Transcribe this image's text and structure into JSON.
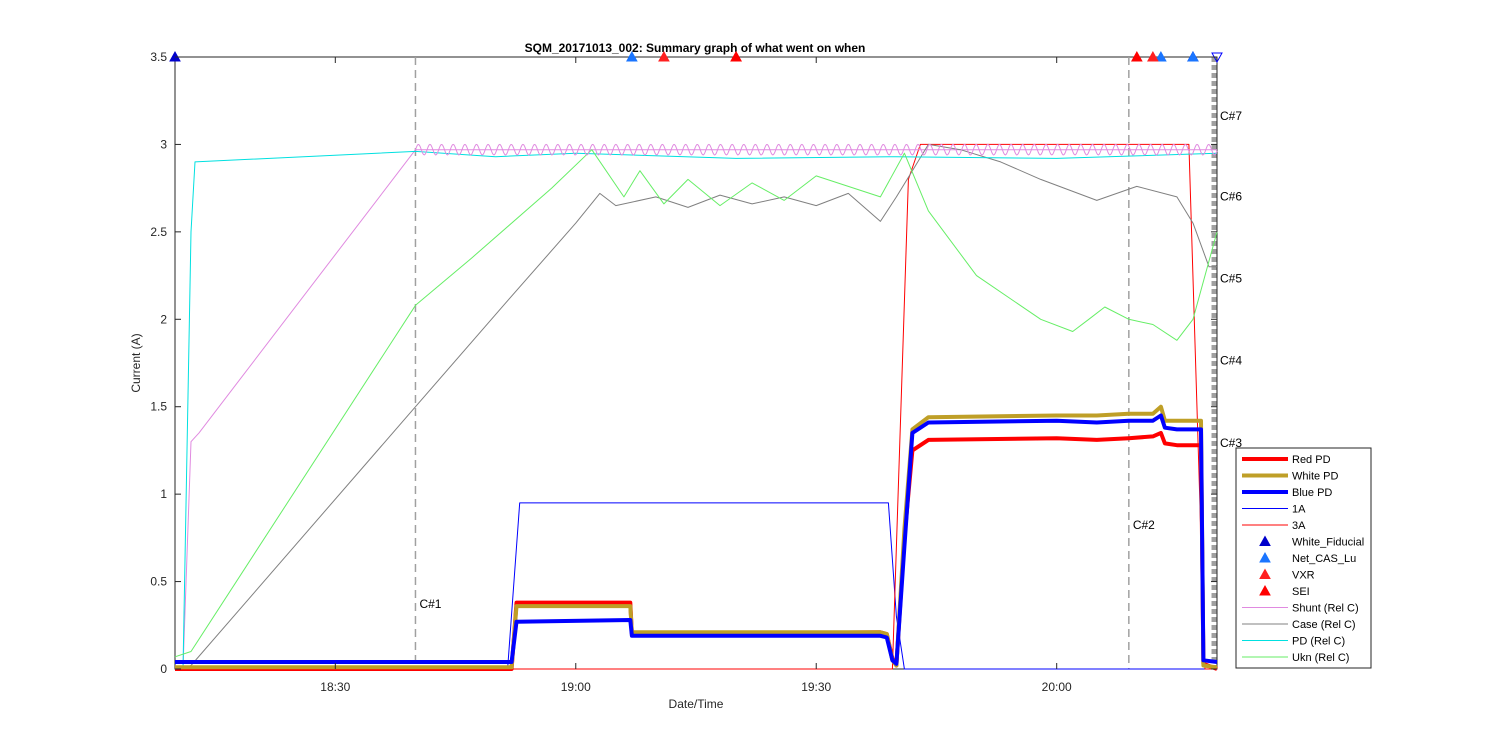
{
  "chart_data": {
    "type": "line",
    "title": "SQM_20171013_002: Summary graph of what went on when",
    "xlabel": "Date/Time",
    "ylabel": "Current (A)",
    "xlim": [
      "18:10",
      "20:20"
    ],
    "ylim": [
      0,
      3.5
    ],
    "xticks": [
      "18:30",
      "19:00",
      "19:30",
      "20:00"
    ],
    "yticks": [
      "0",
      "0.5",
      "1",
      "1.5",
      "2",
      "2.5",
      "3",
      "3.5"
    ],
    "grid": false,
    "legend_position": "right-bottom",
    "series": [
      {
        "name": "Red PD",
        "color": "#ff0000",
        "style": "thick",
        "x": [
          "18:10",
          "18:52",
          "18:52.6",
          "19:06.8",
          "19:07",
          "19:38",
          "19:38.8",
          "19:39.5",
          "19:40",
          "19:41",
          "19:42",
          "19:44",
          "20:00",
          "20:05",
          "20:09",
          "20:12",
          "20:13",
          "20:13.5",
          "20:15",
          "20:18",
          "20:18.3",
          "20:20"
        ],
        "y": [
          0,
          0,
          0.38,
          0.38,
          0.2,
          0.21,
          0.2,
          0.06,
          0.02,
          0.75,
          1.25,
          1.31,
          1.32,
          1.31,
          1.32,
          1.33,
          1.35,
          1.29,
          1.28,
          1.28,
          0.03,
          0
        ]
      },
      {
        "name": "White PD",
        "color": "#bf9f27",
        "style": "thick",
        "x": [
          "18:10",
          "18:52",
          "18:52.6",
          "19:06.8",
          "19:07",
          "19:38",
          "19:38.8",
          "19:39.5",
          "19:40",
          "19:41",
          "19:42",
          "19:44",
          "20:00",
          "20:05",
          "20:09",
          "20:12",
          "20:13",
          "20:13.5",
          "20:15",
          "20:18",
          "20:18.3",
          "20:20"
        ],
        "y": [
          0.01,
          0.01,
          0.36,
          0.36,
          0.21,
          0.21,
          0.2,
          0.05,
          0.02,
          0.8,
          1.37,
          1.44,
          1.45,
          1.45,
          1.46,
          1.46,
          1.5,
          1.42,
          1.42,
          1.42,
          0.02,
          0.01
        ]
      },
      {
        "name": "Blue PD",
        "color": "#0000ff",
        "style": "thick",
        "x": [
          "18:10",
          "18:52",
          "18:52.6",
          "19:06.8",
          "19:07",
          "19:38",
          "19:38.8",
          "19:39.5",
          "19:40",
          "19:41",
          "19:42",
          "19:44",
          "20:00",
          "20:05",
          "20:09",
          "20:12",
          "20:13",
          "20:13.5",
          "20:15",
          "20:18",
          "20:18.3",
          "20:20"
        ],
        "y": [
          0.04,
          0.04,
          0.27,
          0.28,
          0.19,
          0.19,
          0.18,
          0.05,
          0.03,
          0.7,
          1.35,
          1.41,
          1.42,
          1.41,
          1.42,
          1.42,
          1.45,
          1.38,
          1.37,
          1.37,
          0.05,
          0.04
        ]
      },
      {
        "name": "1A",
        "color": "#0000ff",
        "style": "thin",
        "x": [
          "18:10",
          "18:51.5",
          "18:53",
          "19:39",
          "19:40",
          "19:41",
          "20:20"
        ],
        "y": [
          0,
          0,
          0.95,
          0.95,
          0.3,
          0,
          0
        ]
      },
      {
        "name": "3A",
        "color": "#ff0000",
        "style": "thin",
        "x": [
          "18:10",
          "19:39.5",
          "19:41.5",
          "19:43",
          "20:16.5",
          "20:18.5",
          "20:20"
        ],
        "y": [
          0,
          0,
          2.8,
          3,
          3,
          0,
          0
        ]
      },
      {
        "name": "Shunt (Rel C)",
        "color": "#e08ae0",
        "style": "thin",
        "x": [
          "18:11",
          "18:12",
          "18:13",
          "18:40",
          "20:20"
        ],
        "y": [
          0,
          1.3,
          1.35,
          2.97,
          2.97
        ]
      },
      {
        "name": "Case (Rel C)",
        "color": "#808080",
        "style": "thin",
        "x": [
          "18:11",
          "18:12",
          "18:40",
          "18:51",
          "19:00",
          "19:03",
          "19:05",
          "19:10",
          "19:14",
          "19:18",
          "19:22",
          "19:26",
          "19:30",
          "19:34",
          "19:38",
          "19:40",
          "19:42",
          "19:44",
          "19:48",
          "19:53",
          "19:58",
          "20:05",
          "20:10",
          "20:15",
          "20:17",
          "20:19",
          "20:20"
        ],
        "y": [
          0,
          0.02,
          1.5,
          2.08,
          2.55,
          2.72,
          2.65,
          2.7,
          2.64,
          2.71,
          2.66,
          2.7,
          2.65,
          2.72,
          2.56,
          2.7,
          2.85,
          3.0,
          2.97,
          2.9,
          2.8,
          2.68,
          2.76,
          2.7,
          2.55,
          2.3,
          2.3
        ]
      },
      {
        "name": "PD (Rel C)",
        "color": "#00e0e0",
        "style": "thin",
        "x": [
          "18:11",
          "18:12",
          "18:12.5",
          "18:40",
          "18:50",
          "19:00",
          "19:20",
          "19:40",
          "20:00",
          "20:20"
        ],
        "y": [
          0,
          2.5,
          2.9,
          2.96,
          2.93,
          2.95,
          2.92,
          2.93,
          2.92,
          2.95
        ]
      },
      {
        "name": "Ukn (Rel C)",
        "color": "#66ee66",
        "style": "thin",
        "x": [
          "18:10",
          "18:12",
          "18:40",
          "18:47",
          "18:57",
          "19:02",
          "19:06",
          "19:08",
          "19:11",
          "19:14",
          "19:18",
          "19:22",
          "19:26",
          "19:30",
          "19:34",
          "19:38",
          "19:41",
          "19:44",
          "19:50",
          "19:58",
          "20:02",
          "20:04",
          "20:06",
          "20:09",
          "20:12",
          "20:15",
          "20:17",
          "20:20"
        ],
        "y": [
          0.07,
          0.1,
          2.08,
          2.35,
          2.75,
          2.97,
          2.7,
          2.85,
          2.66,
          2.8,
          2.65,
          2.78,
          2.68,
          2.82,
          2.76,
          2.7,
          2.95,
          2.62,
          2.25,
          2.0,
          1.93,
          2.0,
          2.07,
          2.0,
          1.97,
          1.88,
          2.0,
          2.5
        ]
      }
    ],
    "markers": [
      {
        "name": "White_Fiducial",
        "color": "#0000cc",
        "shape": "triangle-up",
        "x": [
          "18:10",
          "20:17"
        ],
        "y": [
          3.5,
          3.5
        ]
      },
      {
        "name": "Net_CAS_Lu",
        "color": "#1a75ff",
        "shape": "triangle-up",
        "x": [
          "19:07",
          "20:13",
          "20:17"
        ],
        "y": [
          3.5,
          3.5,
          3.5
        ]
      },
      {
        "name": "VXR",
        "color": "#ff2020",
        "shape": "triangle-up",
        "x": [
          "19:11",
          "19:20",
          "20:12"
        ],
        "y": [
          3.5,
          3.5,
          3.5
        ]
      },
      {
        "name": "SEI",
        "color": "#ff0000",
        "shape": "triangle-up",
        "x": [
          "19:20",
          "20:10"
        ],
        "y": [
          3.5,
          3.5
        ]
      },
      {
        "name": "",
        "color": "#0000ff",
        "shape": "triangle-down",
        "x": [
          "20:20"
        ],
        "y": [
          3.5
        ]
      }
    ],
    "vlines": [
      {
        "x": "18:40",
        "label": "C#1",
        "label_y": 0.35
      },
      {
        "x": "20:09",
        "label": "C#2",
        "label_y": 0.8
      }
    ],
    "right_labels": [
      {
        "label": "C#3",
        "y": 1.27
      },
      {
        "label": "C#4",
        "y": 1.74
      },
      {
        "label": "C#5",
        "y": 2.21
      },
      {
        "label": "C#6",
        "y": 2.68
      },
      {
        "label": "C#7",
        "y": 3.14
      }
    ]
  }
}
